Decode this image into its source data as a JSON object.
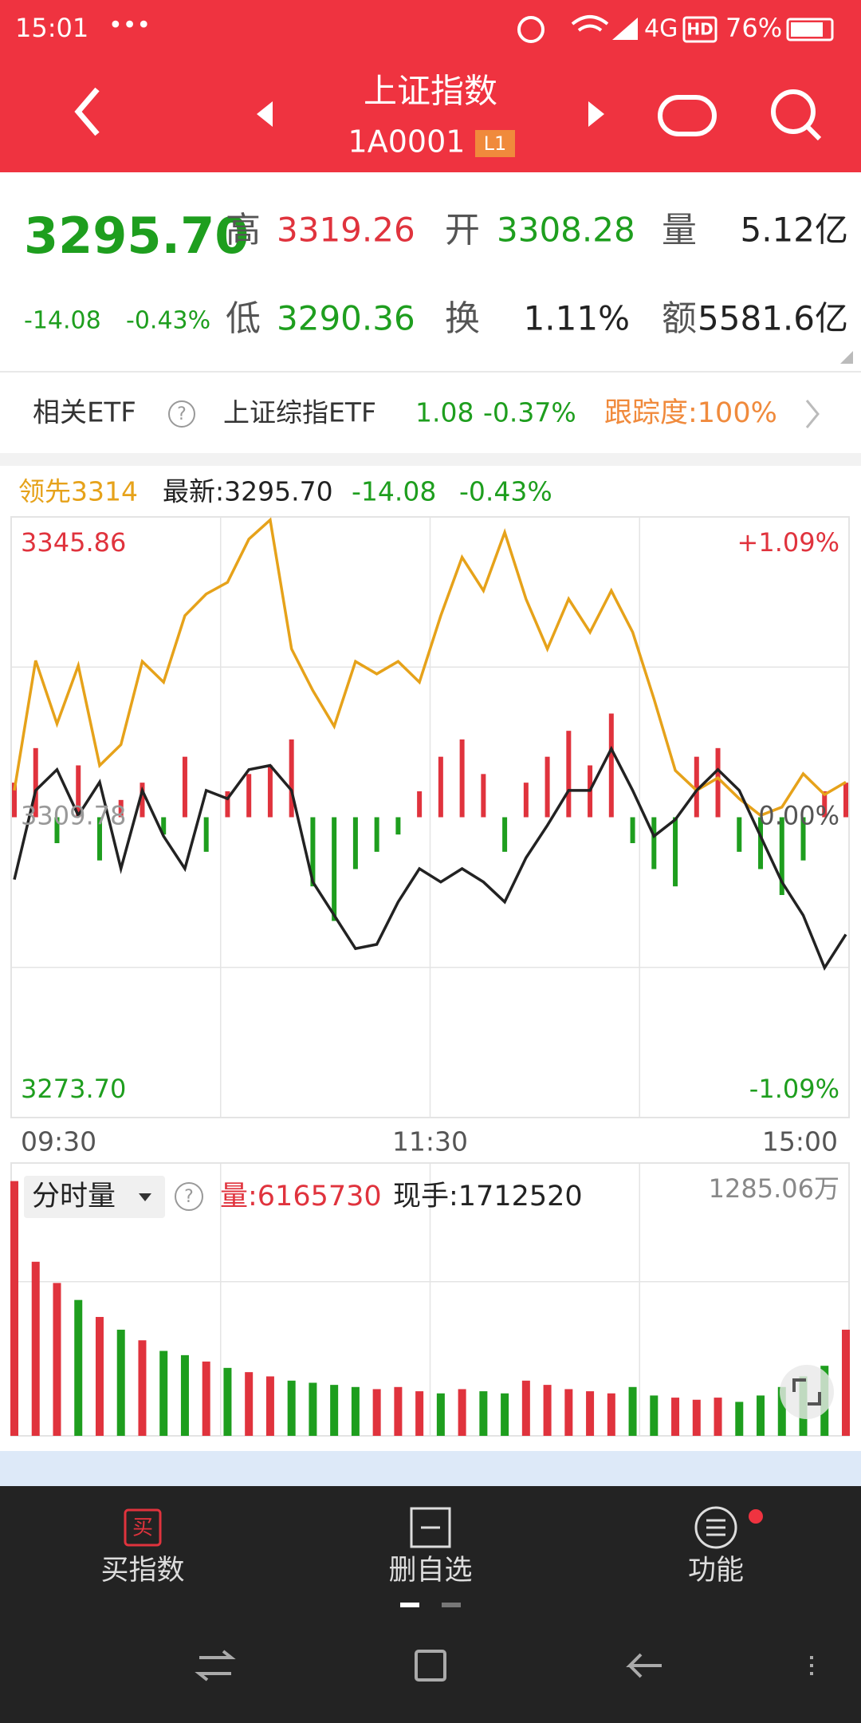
{
  "status_bar": {
    "time": "15:01",
    "network": "4G",
    "hd": "HD",
    "battery": "76%"
  },
  "header": {
    "title": "上证指数",
    "code": "1A0001",
    "level": "L1"
  },
  "quote": {
    "price": "3295.70",
    "change": "-14.08",
    "change_pct": "-0.43%",
    "high_label": "高",
    "high": "3319.26",
    "open_label": "开",
    "open": "3308.28",
    "volume_label": "量",
    "volume": "5.12亿",
    "low_label": "低",
    "low": "3290.36",
    "turnover_label": "换",
    "turnover": "1.11%",
    "amount_label": "额",
    "amount": "5581.6亿"
  },
  "etf": {
    "label": "相关ETF",
    "name": "上证综指ETF",
    "price": "1.08",
    "change": "-0.37%",
    "tracking": "跟踪度:100%"
  },
  "intraday": {
    "type": "line",
    "leading_label": "领先3314",
    "latest_label": "最新:3295.70",
    "change": "-14.08",
    "change_pct": "-0.43%",
    "categories": [
      "09:30",
      "11:30",
      "15:00"
    ],
    "ylim": [
      3273.7,
      3345.86
    ],
    "yticks": [
      {
        "value": 3273.7,
        "label": "3273.70"
      },
      3309.78,
      3345.86
    ],
    "y2lim": [
      -1.09,
      1.09
    ],
    "y2ticks": [
      {
        "value": -1.09,
        "label": "-1.09%"
      },
      {
        "value": 0,
        "label": "0.00%"
      },
      {
        "value": 1.09,
        "label": "+1.09%"
      }
    ],
    "series": [
      {
        "name": "最新",
        "color": "#222222",
        "values": [
          3302.3,
          3313.0,
          3315.5,
          3310.0,
          3314.0,
          3303.6,
          3313.0,
          3307.5,
          3303.6,
          3313.0,
          3312.0,
          3315.5,
          3316.0,
          3313.0,
          3302.0,
          3298.0,
          3294.0,
          3294.5,
          3299.6,
          3303.6,
          3302.0,
          3303.6,
          3302.0,
          3299.6,
          3304.9,
          3308.8,
          3313.0,
          3313.0,
          3318.0,
          3313.0,
          3307.5,
          3309.5,
          3313.0,
          3315.5,
          3313.0,
          3307.5,
          3302.0,
          3298.0,
          3291.7,
          3295.7
        ]
      },
      {
        "name": "领先",
        "color": "#e6a21a",
        "values": [
          3313.0,
          3328.6,
          3321.0,
          3328.0,
          3316.0,
          3318.5,
          3328.5,
          3326.0,
          3334.0,
          3336.6,
          3338.0,
          3343.2,
          3345.5,
          3330.0,
          3325.0,
          3320.7,
          3328.5,
          3327.0,
          3328.5,
          3326.0,
          3334.0,
          3341.0,
          3337.0,
          3344.0,
          3336.0,
          3330.0,
          3336.0,
          3332.0,
          3337.0,
          3332.0,
          3324.0,
          3315.4,
          3313.0,
          3314.5,
          3312.0,
          3310.0,
          3311.0,
          3315.0,
          3312.5,
          3314.0
        ]
      }
    ],
    "strength": [
      20,
      40,
      -15,
      30,
      -25,
      10,
      20,
      -10,
      35,
      -20,
      15,
      25,
      30,
      45,
      -40,
      -60,
      -30,
      -20,
      -10,
      15,
      35,
      45,
      25,
      -20,
      20,
      35,
      50,
      30,
      60,
      -15,
      -30,
      -40,
      35,
      40,
      -20,
      -30,
      -45,
      -25,
      15,
      20
    ],
    "up_color": "#e0333d",
    "down_color": "#1e9e1e"
  },
  "volume": {
    "type": "bar",
    "title": "分时量",
    "volume_label": "量:6165730",
    "hand_label": "现手:1712520",
    "ylim": [
      0,
      1285.06
    ],
    "yticks": [
      {
        "value": 1285.06,
        "label": "1285.06万"
      }
    ],
    "values": [
      1200,
      820,
      720,
      640,
      560,
      500,
      450,
      400,
      380,
      350,
      320,
      300,
      280,
      260,
      250,
      240,
      230,
      220,
      230,
      210,
      200,
      220,
      210,
      200,
      260,
      240,
      220,
      210,
      200,
      230,
      190,
      180,
      170,
      180,
      160,
      190,
      230,
      280,
      330,
      500
    ]
  },
  "nav": {
    "items": [
      "买指数",
      "删自选",
      "功能"
    ],
    "buy_icon": "买"
  }
}
